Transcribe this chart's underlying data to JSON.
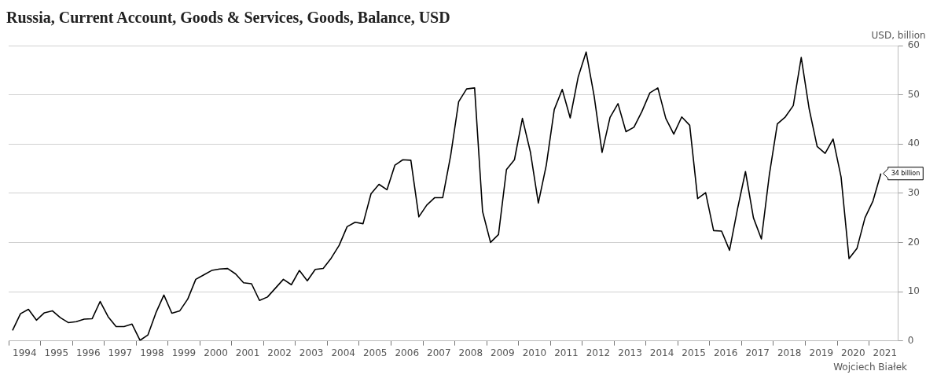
{
  "chart_data": {
    "type": "line",
    "title": "Russia, Current Account, Goods & Services, Goods, Balance, USD",
    "ylabel": "USD, billion",
    "annotations": [
      {
        "text": "34 billion",
        "x": "2021-05-15",
        "y": 34
      },
      "Wojciech Białek"
    ],
    "x": [
      "1994-02-15",
      "1994-05-15",
      "1994-08-15",
      "1994-11-15",
      "1995-02-15",
      "1995-05-15",
      "1995-08-15",
      "1995-11-15",
      "1996-02-15",
      "1996-05-15",
      "1996-08-15",
      "1996-11-15",
      "1997-02-15",
      "1997-05-15",
      "1997-08-15",
      "1997-11-15",
      "1998-02-15",
      "1998-05-15",
      "1998-08-15",
      "1998-11-15",
      "1999-02-15",
      "1999-05-15",
      "1999-08-15",
      "1999-11-15",
      "2000-02-15",
      "2000-05-15",
      "2000-08-15",
      "2000-11-15",
      "2001-02-15",
      "2001-05-15",
      "2001-08-15",
      "2001-11-15",
      "2002-02-15",
      "2002-05-15",
      "2002-08-15",
      "2002-11-15",
      "2003-02-15",
      "2003-05-15",
      "2003-08-15",
      "2003-11-15",
      "2004-02-15",
      "2004-05-15",
      "2004-08-15",
      "2004-11-15",
      "2005-02-15",
      "2005-05-15",
      "2005-08-15",
      "2005-11-15",
      "2006-02-15",
      "2006-05-15",
      "2006-08-15",
      "2006-11-15",
      "2007-02-15",
      "2007-05-15",
      "2007-08-15",
      "2007-11-15",
      "2008-02-15",
      "2008-05-15",
      "2008-08-15",
      "2008-11-15",
      "2009-02-15",
      "2009-05-15",
      "2009-08-15",
      "2009-11-15",
      "2010-02-15",
      "2010-05-15",
      "2010-08-15",
      "2010-11-15",
      "2011-02-15",
      "2011-05-15",
      "2011-08-15",
      "2011-11-15",
      "2012-02-15",
      "2012-05-15",
      "2012-08-15",
      "2012-11-15",
      "2013-02-15",
      "2013-05-15",
      "2013-08-15",
      "2013-11-15",
      "2014-02-15",
      "2014-05-15",
      "2014-08-15",
      "2014-11-15",
      "2015-02-15",
      "2015-05-15",
      "2015-08-15",
      "2015-11-15",
      "2016-02-15",
      "2016-05-15",
      "2016-08-15",
      "2016-11-15",
      "2017-02-15",
      "2017-05-15",
      "2017-08-15",
      "2017-11-15",
      "2018-02-15",
      "2018-05-15",
      "2018-08-15",
      "2018-11-15",
      "2019-02-15",
      "2019-05-15",
      "2019-08-15",
      "2019-11-15",
      "2020-02-15",
      "2020-05-15",
      "2020-08-15",
      "2020-11-15",
      "2021-02-15",
      "2021-05-15"
    ],
    "series": [
      {
        "color": "#000000",
        "values": [
          2.1,
          5.5,
          6.4,
          4.2,
          5.7,
          6.1,
          4.7,
          3.7,
          3.9,
          4.4,
          4.5,
          8.0,
          4.9,
          2.9,
          2.9,
          3.4,
          0.1,
          1.2,
          5.7,
          9.3,
          5.6,
          6.1,
          8.5,
          12.5,
          13.4,
          14.3,
          14.6,
          14.7,
          13.6,
          11.8,
          11.6,
          8.2,
          8.9,
          10.7,
          12.5,
          11.4,
          14.3,
          12.2,
          14.5,
          14.7,
          16.8,
          19.4,
          23.2,
          24.1,
          23.8,
          29.9,
          31.8,
          30.7,
          35.7,
          36.8,
          36.7,
          25.2,
          27.6,
          29.1,
          29.1,
          37.7,
          48.6,
          51.2,
          51.4,
          26.3,
          20.0,
          21.6,
          34.8,
          36.8,
          45.2,
          38.4,
          28.0,
          35.7,
          47.0,
          51.1,
          45.3,
          53.6,
          58.7,
          49.8,
          38.3,
          45.4,
          48.2,
          42.5,
          43.4,
          46.6,
          50.4,
          51.4,
          45.2,
          42.0,
          45.5,
          43.8,
          28.9,
          30.1,
          22.4,
          22.3,
          18.4,
          26.8,
          34.4,
          25.0,
          20.7,
          33.8,
          44.1,
          45.5,
          47.8,
          57.6,
          47.1,
          39.5,
          38.1,
          41.0,
          33.3,
          16.7,
          18.8,
          25.0,
          28.4,
          34.0
        ]
      }
    ],
    "xlim": [
      "1994-01-01",
      "2021-12-01"
    ],
    "xticks": [
      {
        "value": "1994-01-01",
        "label": null
      },
      {
        "value": "1994-07-01",
        "label": "1994"
      },
      {
        "value": "1995-01-01",
        "label": null
      },
      {
        "value": "1995-07-01",
        "label": "1995"
      },
      {
        "value": "1996-01-01",
        "label": null
      },
      {
        "value": "1996-07-01",
        "label": "1996"
      },
      {
        "value": "1997-01-01",
        "label": null
      },
      {
        "value": "1997-07-01",
        "label": "1997"
      },
      {
        "value": "1998-01-01",
        "label": null
      },
      {
        "value": "1998-07-01",
        "label": "1998"
      },
      {
        "value": "1999-01-01",
        "label": null
      },
      {
        "value": "1999-07-01",
        "label": "1999"
      },
      {
        "value": "2000-01-01",
        "label": null
      },
      {
        "value": "2000-07-01",
        "label": "2000"
      },
      {
        "value": "2001-01-01",
        "label": null
      },
      {
        "value": "2001-07-01",
        "label": "2001"
      },
      {
        "value": "2002-01-01",
        "label": null
      },
      {
        "value": "2002-07-01",
        "label": "2002"
      },
      {
        "value": "2003-01-01",
        "label": null
      },
      {
        "value": "2003-07-01",
        "label": "2003"
      },
      {
        "value": "2004-01-01",
        "label": null
      },
      {
        "value": "2004-07-01",
        "label": "2004"
      },
      {
        "value": "2005-01-01",
        "label": null
      },
      {
        "value": "2005-07-01",
        "label": "2005"
      },
      {
        "value": "2006-01-01",
        "label": null
      },
      {
        "value": "2006-07-01",
        "label": "2006"
      },
      {
        "value": "2007-01-01",
        "label": null
      },
      {
        "value": "2007-07-01",
        "label": "2007"
      },
      {
        "value": "2008-01-01",
        "label": null
      },
      {
        "value": "2008-07-01",
        "label": "2008"
      },
      {
        "value": "2009-01-01",
        "label": null
      },
      {
        "value": "2009-07-01",
        "label": "2009"
      },
      {
        "value": "2010-01-01",
        "label": null
      },
      {
        "value": "2010-07-01",
        "label": "2010"
      },
      {
        "value": "2011-01-01",
        "label": null
      },
      {
        "value": "2011-07-01",
        "label": "2011"
      },
      {
        "value": "2012-01-01",
        "label": null
      },
      {
        "value": "2012-07-01",
        "label": "2012"
      },
      {
        "value": "2013-01-01",
        "label": null
      },
      {
        "value": "2013-07-01",
        "label": "2013"
      },
      {
        "value": "2014-01-01",
        "label": null
      },
      {
        "value": "2014-07-01",
        "label": "2014"
      },
      {
        "value": "2015-01-01",
        "label": null
      },
      {
        "value": "2015-07-01",
        "label": "2015"
      },
      {
        "value": "2016-01-01",
        "label": null
      },
      {
        "value": "2016-07-01",
        "label": "2016"
      },
      {
        "value": "2017-01-01",
        "label": null
      },
      {
        "value": "2017-07-01",
        "label": "2017"
      },
      {
        "value": "2018-01-01",
        "label": null
      },
      {
        "value": "2018-07-01",
        "label": "2018"
      },
      {
        "value": "2019-01-01",
        "label": null
      },
      {
        "value": "2019-07-01",
        "label": "2019"
      },
      {
        "value": "2020-01-01",
        "label": null
      },
      {
        "value": "2020-07-01",
        "label": "2020"
      },
      {
        "value": "2021-01-01",
        "label": null
      },
      {
        "value": "2021-07-01",
        "label": "2021"
      }
    ],
    "ylim": [
      0,
      60
    ],
    "yticks": [
      0,
      10,
      20,
      30,
      40,
      50,
      60
    ],
    "grid": "y",
    "legend": false,
    "marker": "none",
    "line_style": "solid"
  }
}
